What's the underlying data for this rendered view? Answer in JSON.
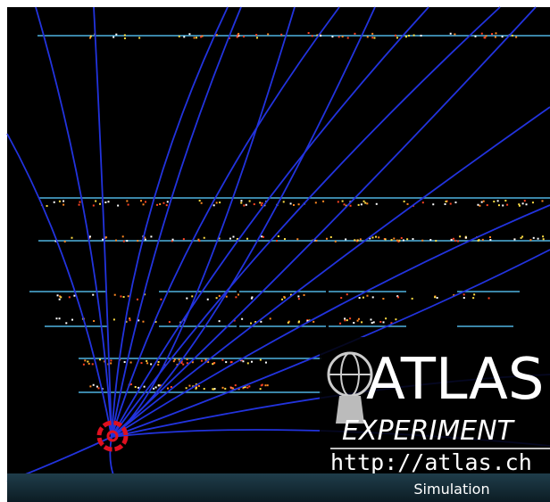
{
  "logo": {
    "title": "ATLAS",
    "subtitle": "EXPERIMENT",
    "url": "http://atlas.ch"
  },
  "footer": {
    "label": "Simulation"
  }
}
